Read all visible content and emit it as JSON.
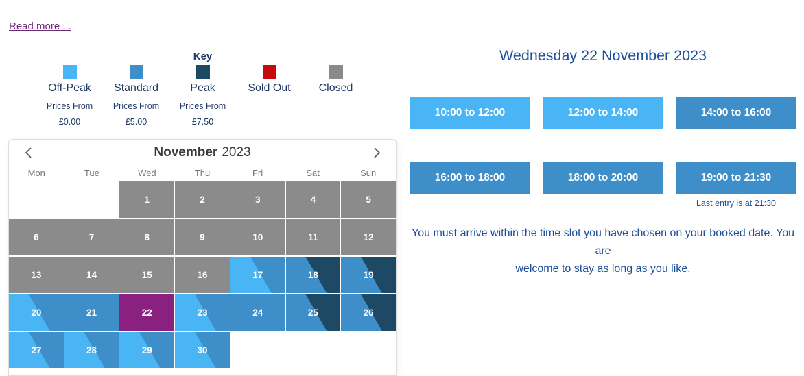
{
  "read_more": "Read more ...",
  "colors": {
    "offpeak": "#4ab5f5",
    "standard": "#3e8fc9",
    "peak": "#1e4965",
    "soldout": "#c60a10",
    "closed": "#8b8b8b",
    "selected": "#8a2080",
    "link": "#6e2a78",
    "navy": "#1f3a66",
    "bluetext": "#1d4e9b"
  },
  "legend": {
    "title": "Key",
    "items": [
      {
        "label": "Off-Peak",
        "sub": "Prices From",
        "price": "£0.00",
        "color_key": "offpeak"
      },
      {
        "label": "Standard",
        "sub": "Prices From",
        "price": "£5.00",
        "color_key": "standard"
      },
      {
        "label": "Peak",
        "sub": "Prices From",
        "price": "£7.50",
        "color_key": "peak",
        "show_key": true
      },
      {
        "label": "Sold Out",
        "color_key": "soldout"
      },
      {
        "label": "Closed",
        "color_key": "closed"
      }
    ]
  },
  "calendar": {
    "month": "November",
    "year": "2023",
    "prev_icon": "chevron-left",
    "next_icon": "chevron-right",
    "weekdays": [
      "Mon",
      "Tue",
      "Wed",
      "Thu",
      "Fri",
      "Sat",
      "Sun"
    ],
    "leading_blanks": 2,
    "days": [
      {
        "n": "1",
        "type": "closed"
      },
      {
        "n": "2",
        "type": "closed"
      },
      {
        "n": "3",
        "type": "closed"
      },
      {
        "n": "4",
        "type": "closed"
      },
      {
        "n": "5",
        "type": "closed"
      },
      {
        "n": "6",
        "type": "closed"
      },
      {
        "n": "7",
        "type": "closed"
      },
      {
        "n": "8",
        "type": "closed"
      },
      {
        "n": "9",
        "type": "closed"
      },
      {
        "n": "10",
        "type": "closed"
      },
      {
        "n": "11",
        "type": "closed"
      },
      {
        "n": "12",
        "type": "closed"
      },
      {
        "n": "13",
        "type": "closed"
      },
      {
        "n": "14",
        "type": "closed"
      },
      {
        "n": "15",
        "type": "closed"
      },
      {
        "n": "16",
        "type": "closed"
      },
      {
        "n": "17",
        "type": "offpeak-standard"
      },
      {
        "n": "18",
        "type": "standard-peak"
      },
      {
        "n": "19",
        "type": "standard-peak"
      },
      {
        "n": "20",
        "type": "offpeak-standard"
      },
      {
        "n": "21",
        "type": "standard"
      },
      {
        "n": "22",
        "type": "selected"
      },
      {
        "n": "23",
        "type": "offpeak-standard"
      },
      {
        "n": "24",
        "type": "standard"
      },
      {
        "n": "25",
        "type": "standard-peak"
      },
      {
        "n": "26",
        "type": "standard-peak"
      },
      {
        "n": "27",
        "type": "offpeak-standard"
      },
      {
        "n": "28",
        "type": "offpeak-standard"
      },
      {
        "n": "29",
        "type": "offpeak-standard"
      },
      {
        "n": "30",
        "type": "offpeak-standard"
      }
    ]
  },
  "details": {
    "title": "Wednesday 22 November 2023",
    "slots": [
      {
        "label": "10:00 to 12:00",
        "band": "offpeak"
      },
      {
        "label": "12:00 to 14:00",
        "band": "offpeak"
      },
      {
        "label": "14:00 to 16:00",
        "band": "standard"
      },
      {
        "label": "16:00 to 18:00",
        "band": "standard"
      },
      {
        "label": "18:00 to 20:00",
        "band": "standard"
      },
      {
        "label": "19:00 to 21:30",
        "band": "standard",
        "note": "Last entry is at 21:30"
      }
    ],
    "notice_lines": [
      "You must arrive within the time slot you have chosen on your booked date. You are",
      "welcome to stay as long as you like."
    ]
  }
}
